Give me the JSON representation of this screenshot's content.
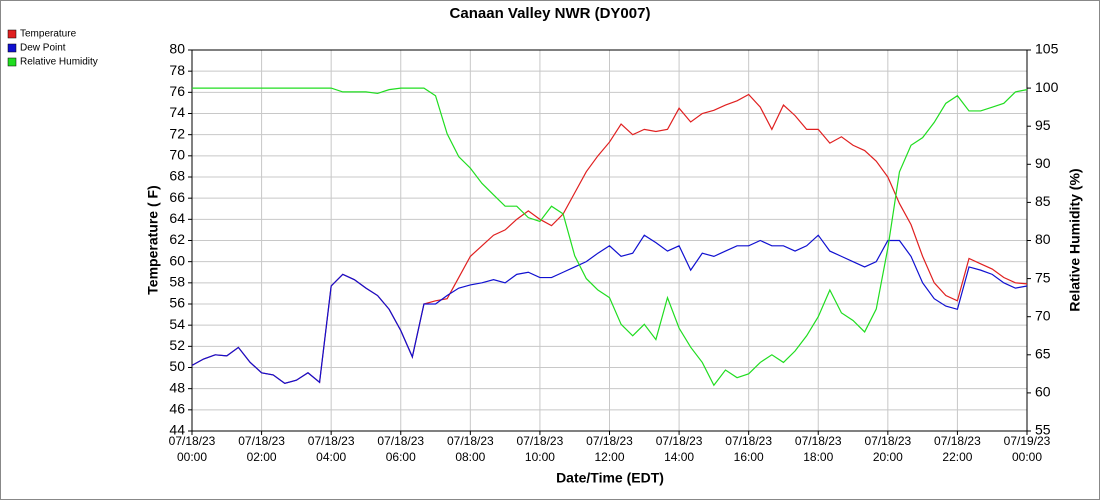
{
  "chart_data": {
    "type": "line",
    "title": "Canaan Valley NWR (DY007)",
    "x_label": "Date/Time (EDT)",
    "y_label": "Temperature ( F)",
    "y2_label": "Relative Humidity (%)",
    "x": [
      0,
      20,
      40,
      60,
      80,
      100,
      120,
      140,
      160,
      180,
      200,
      220,
      240,
      260,
      280,
      300,
      320,
      340,
      360,
      380,
      400,
      420,
      440,
      460,
      480,
      500,
      520,
      540,
      560,
      580,
      600,
      620,
      640,
      660,
      680,
      700,
      720,
      740,
      760,
      780,
      800,
      820,
      840,
      860,
      880,
      900,
      920,
      940,
      960,
      980,
      1000,
      1020,
      1040,
      1060,
      1080,
      1100,
      1120,
      1140,
      1160,
      1180,
      1200,
      1220,
      1240,
      1260,
      1280,
      1300,
      1320,
      1340,
      1360,
      1380,
      1400,
      1420,
      1440
    ],
    "xlim": [
      0,
      1440
    ],
    "xticks": [
      {
        "value": 0,
        "label": [
          "07/18/23",
          "00:00"
        ]
      },
      {
        "value": 120,
        "label": [
          "07/18/23",
          "02:00"
        ]
      },
      {
        "value": 240,
        "label": [
          "07/18/23",
          "04:00"
        ]
      },
      {
        "value": 360,
        "label": [
          "07/18/23",
          "06:00"
        ]
      },
      {
        "value": 480,
        "label": [
          "07/18/23",
          "08:00"
        ]
      },
      {
        "value": 600,
        "label": [
          "07/18/23",
          "10:00"
        ]
      },
      {
        "value": 720,
        "label": [
          "07/18/23",
          "12:00"
        ]
      },
      {
        "value": 840,
        "label": [
          "07/18/23",
          "14:00"
        ]
      },
      {
        "value": 960,
        "label": [
          "07/18/23",
          "16:00"
        ]
      },
      {
        "value": 1080,
        "label": [
          "07/18/23",
          "18:00"
        ]
      },
      {
        "value": 1200,
        "label": [
          "07/18/23",
          "20:00"
        ]
      },
      {
        "value": 1320,
        "label": [
          "07/18/23",
          "22:00"
        ]
      },
      {
        "value": 1440,
        "label": [
          "07/19/23",
          "00:00"
        ]
      }
    ],
    "ylim": [
      44,
      80
    ],
    "yticks": [
      44,
      46,
      48,
      50,
      52,
      54,
      56,
      58,
      60,
      62,
      64,
      66,
      68,
      70,
      72,
      74,
      76,
      78,
      80
    ],
    "y2lim": [
      55,
      105
    ],
    "y2ticks": [
      55,
      60,
      65,
      70,
      75,
      80,
      85,
      90,
      95,
      100,
      105
    ],
    "grid": true,
    "legend": "top-left",
    "series": [
      {
        "name": "Temperature",
        "color": "#e02020",
        "values": [
          50.2,
          50.8,
          51.2,
          51.1,
          51.9,
          50.5,
          49.5,
          49.3,
          48.5,
          48.8,
          49.5,
          48.6,
          57.7,
          58.8,
          58.3,
          57.5,
          56.8,
          55.5,
          53.5,
          51.0,
          56.0,
          56.3,
          56.5,
          58.5,
          60.5,
          61.5,
          62.5,
          63.0,
          64.0,
          64.8,
          64.0,
          63.4,
          64.5,
          66.5,
          68.5,
          70.0,
          71.3,
          73.0,
          72.0,
          72.5,
          72.3,
          72.5,
          74.5,
          73.2,
          74.0,
          74.3,
          74.8,
          75.2,
          75.8,
          74.6,
          72.5,
          74.8,
          73.8,
          72.5,
          72.5,
          71.2,
          71.8,
          71.0,
          70.5,
          69.5,
          68.0,
          65.5,
          63.5,
          60.5,
          58.0,
          56.8,
          56.3,
          60.3,
          59.8,
          59.3,
          58.5,
          58.0,
          57.9
        ]
      },
      {
        "name": "Dew Point",
        "color": "#1010d0",
        "values": [
          50.2,
          50.8,
          51.2,
          51.1,
          51.9,
          50.5,
          49.5,
          49.3,
          48.5,
          48.8,
          49.5,
          48.6,
          57.7,
          58.8,
          58.3,
          57.5,
          56.8,
          55.5,
          53.5,
          51.0,
          56.0,
          56.0,
          56.8,
          57.5,
          57.8,
          58.0,
          58.3,
          58.0,
          58.8,
          59.0,
          58.5,
          58.5,
          59.0,
          59.5,
          60.0,
          60.8,
          61.5,
          60.5,
          60.8,
          62.5,
          61.8,
          61.0,
          61.5,
          59.2,
          60.8,
          60.5,
          61.0,
          61.5,
          61.5,
          62.0,
          61.5,
          61.5,
          61.0,
          61.5,
          62.5,
          61.0,
          60.5,
          60.0,
          59.5,
          60.0,
          62.0,
          62.0,
          60.5,
          58.0,
          56.5,
          55.8,
          55.5,
          59.5,
          59.2,
          58.8,
          58.0,
          57.5,
          57.7
        ]
      },
      {
        "name": "Relative Humidity",
        "color": "#20dd20",
        "axis": "y2",
        "values": [
          100,
          100,
          100,
          100,
          100,
          100,
          100,
          100,
          100,
          100,
          100,
          100,
          100,
          99.5,
          99.5,
          99.5,
          99.3,
          99.8,
          100,
          100,
          100,
          99,
          94,
          91,
          89.5,
          87.5,
          86,
          84.5,
          84.5,
          83,
          82.5,
          84.5,
          83.5,
          78,
          75,
          73.5,
          72.5,
          69,
          67.5,
          69,
          67,
          72.5,
          68.5,
          66,
          64,
          61,
          63,
          62,
          62.5,
          64,
          65,
          64,
          65.5,
          67.5,
          70,
          73.5,
          70.5,
          69.5,
          68,
          71,
          79,
          89,
          92.5,
          93.5,
          95.5,
          98,
          99,
          97,
          97,
          97.5,
          98,
          99.5,
          99.8
        ]
      }
    ]
  }
}
